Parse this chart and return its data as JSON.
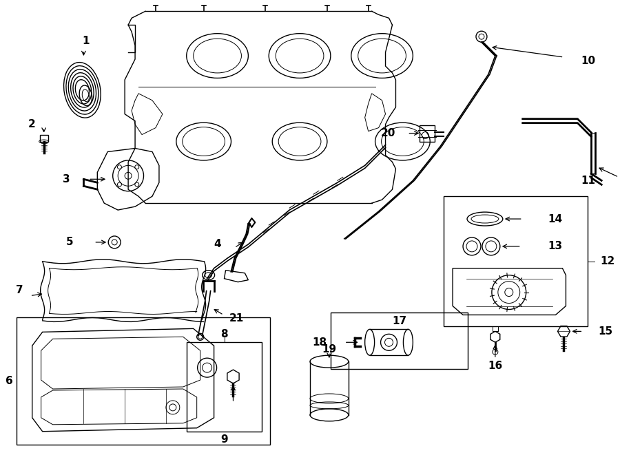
{
  "bg_color": "#ffffff",
  "line_color": "#000000",
  "fig_width": 9.0,
  "fig_height": 6.61,
  "dpi": 100,
  "label_fontsize": 11,
  "label_fontweight": "bold"
}
